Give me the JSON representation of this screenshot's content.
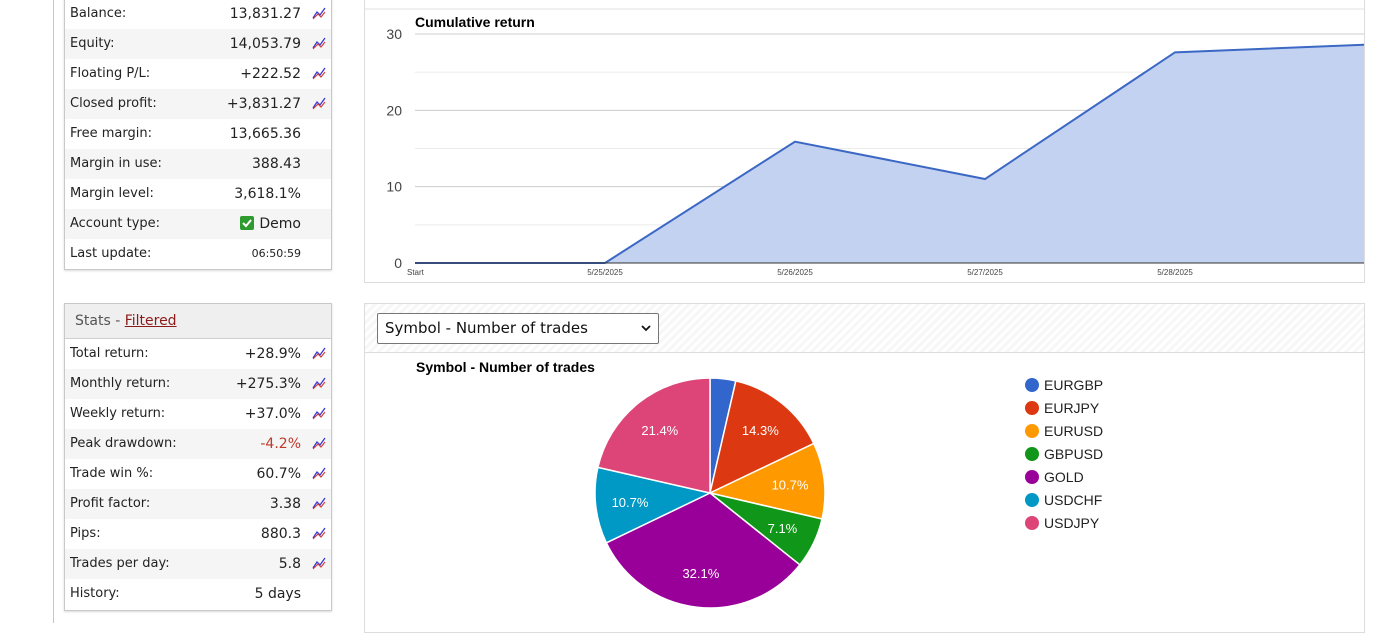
{
  "account": {
    "rows": [
      {
        "label": "Balance:",
        "value": "13,831.27",
        "chart_icon": true
      },
      {
        "label": "Equity:",
        "value": "14,053.79",
        "chart_icon": true
      },
      {
        "label": "Floating P/L:",
        "value": "+222.52",
        "chart_icon": true
      },
      {
        "label": "Closed profit:",
        "value": "+3,831.27",
        "chart_icon": true
      },
      {
        "label": "Free margin:",
        "value": "13,665.36",
        "chart_icon": false
      },
      {
        "label": "Margin in use:",
        "value": "388.43",
        "chart_icon": false
      },
      {
        "label": "Margin level:",
        "value": "3,618.1%",
        "chart_icon": false
      },
      {
        "label": "Account type:",
        "value": "Demo",
        "chart_icon": false,
        "checkbox": true
      },
      {
        "label": "Last update:",
        "value": "06:50:59",
        "chart_icon": false
      }
    ]
  },
  "stats": {
    "title": "Stats - ",
    "filter_link": "Filtered",
    "rows": [
      {
        "label": "Total return:",
        "value": "+28.9%",
        "chart_icon": true
      },
      {
        "label": "Monthly return:",
        "value": "+275.3%",
        "chart_icon": true
      },
      {
        "label": "Weekly return:",
        "value": "+37.0%",
        "chart_icon": true
      },
      {
        "label": "Peak drawdown:",
        "value": "-4.2%",
        "chart_icon": true,
        "negative": true
      },
      {
        "label": "Trade win %:",
        "value": "60.7%",
        "chart_icon": true
      },
      {
        "label": "Profit factor:",
        "value": "3.38",
        "chart_icon": true
      },
      {
        "label": "Pips:",
        "value": "880.3",
        "chart_icon": true
      },
      {
        "label": "Trades per day:",
        "value": "5.8",
        "chart_icon": true
      },
      {
        "label": "History:",
        "value": "5 days",
        "chart_icon": false
      }
    ]
  },
  "pie_selector": {
    "selected": "Symbol - Number of trades"
  },
  "colors": {
    "area_fill": "#c4d2f1",
    "area_line": "#3b68c4"
  },
  "chart_data": [
    {
      "type": "area",
      "title": "Cumulative return",
      "x": [
        "Start",
        "5/25/2025",
        "5/26/2025",
        "5/27/2025",
        "5/28/2025",
        ""
      ],
      "values": [
        0,
        0,
        15.9,
        11.0,
        27.6,
        28.6
      ],
      "yticks": [
        0,
        10,
        20,
        30
      ],
      "ylim": [
        0,
        30
      ],
      "grid": true
    },
    {
      "type": "pie",
      "title": "Symbol - Number of trades",
      "legend_position": "right",
      "slices": [
        {
          "name": "EURGBP",
          "value": 3.6,
          "label": "",
          "color": "#3366cc"
        },
        {
          "name": "EURJPY",
          "value": 14.3,
          "label": "14.3%",
          "color": "#dc3912"
        },
        {
          "name": "EURUSD",
          "value": 10.7,
          "label": "10.7%",
          "color": "#ff9900"
        },
        {
          "name": "GBPUSD",
          "value": 7.1,
          "label": "7.1%",
          "color": "#109618"
        },
        {
          "name": "GOLD",
          "value": 32.1,
          "label": "32.1%",
          "color": "#990099"
        },
        {
          "name": "USDCHF",
          "value": 10.7,
          "label": "10.7%",
          "color": "#0099c6"
        },
        {
          "name": "USDJPY",
          "value": 21.4,
          "label": "21.4%",
          "color": "#dd4477"
        }
      ]
    }
  ]
}
